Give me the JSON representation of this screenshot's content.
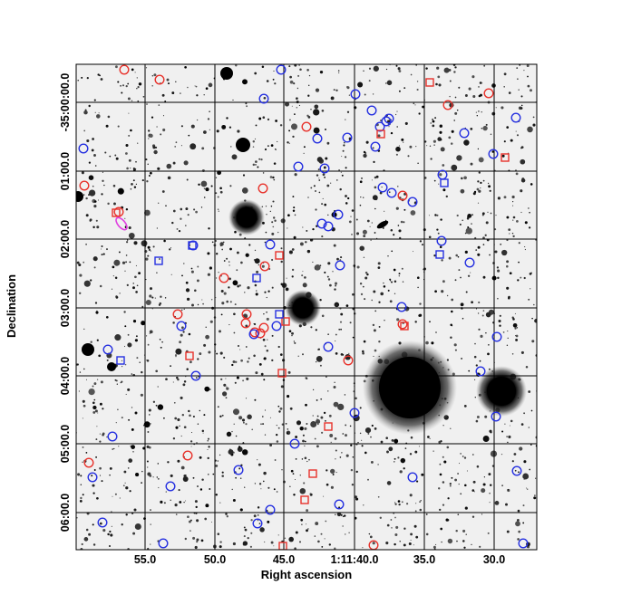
{
  "figure": {
    "xlabel": "Right ascension",
    "ylabel": "Declination",
    "x_tick_labels": [
      "55.0",
      "50.0",
      "45.0",
      "1:11:40.0",
      "35.0",
      "30.0"
    ],
    "y_tick_labels": [
      "-35:00:00.0",
      "01:00.0",
      "02:00.0",
      "03:00.0",
      "04:00.0",
      "05:00.0",
      "06:00.0"
    ]
  },
  "legend_colors": {
    "red_marker": "#e8322b",
    "blue_marker": "#2530e0",
    "magenta_ellipse": "#e040e0",
    "background": "#f2f2f2",
    "grid": "#000000"
  },
  "markers": {
    "red_circles": 22,
    "blue_circles": 50,
    "red_squares": 13,
    "blue_squares": 7,
    "magenta_ellipses": 1
  }
}
